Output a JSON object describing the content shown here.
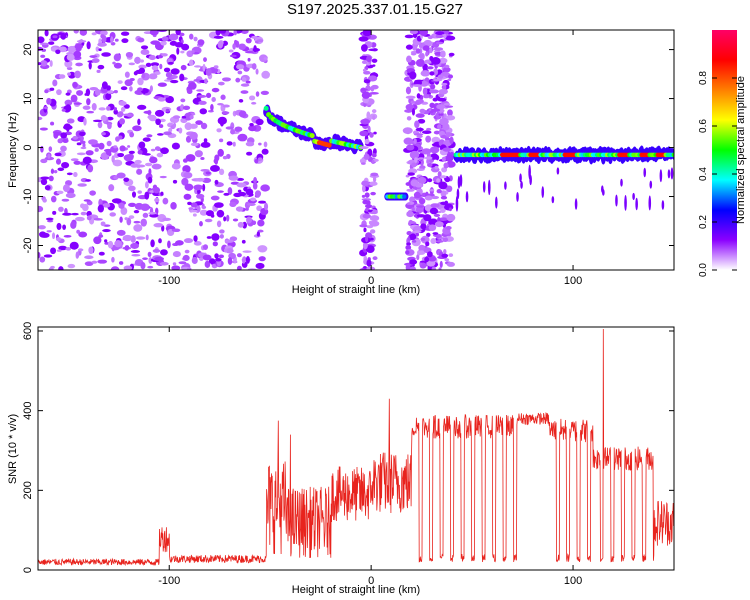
{
  "title": "S197.2025.337.01.15.G27",
  "chart_data": [
    {
      "type": "heatmap",
      "xlabel": "Height of straight line (km)",
      "ylabel": "Frequency (Hz)",
      "xlim": [
        -165,
        150
      ],
      "ylim": [
        -25,
        24
      ],
      "xticks": [
        -100,
        0,
        100
      ],
      "yticks": [
        -20,
        -10,
        0,
        10,
        20
      ],
      "colorbar": {
        "label": "Normalized spectral amplitude",
        "range": [
          0,
          1
        ],
        "ticks": [
          "0.0",
          "0.2",
          "0.4",
          "0.6",
          "0.8"
        ],
        "colors": [
          "#ffffff",
          "#8b00ff",
          "#0000ff",
          "#00ffff",
          "#00ff00",
          "#ffff00",
          "#ff7f00",
          "#ff0000",
          "#ff0066"
        ]
      },
      "regions": [
        {
          "name": "noise-scatter",
          "x": [
            -165,
            -52
          ],
          "freq": [
            -25,
            24
          ],
          "amplitude": 0.1
        },
        {
          "name": "rising-track",
          "x": [
            -52,
            -5
          ],
          "freq_start": 8,
          "freq_end": 0,
          "amplitude": 0.7
        },
        {
          "name": "vertical-burst-1",
          "x": [
            -4,
            2
          ],
          "freq": [
            -25,
            24
          ],
          "amplitude": 0.15
        },
        {
          "name": "low-segment",
          "x": [
            8,
            17
          ],
          "freq": -10,
          "amplitude": 0.5
        },
        {
          "name": "vertical-burst-2",
          "x": [
            18,
            40
          ],
          "freq": [
            -25,
            24
          ],
          "amplitude": 0.1
        },
        {
          "name": "main-track",
          "x": [
            42,
            150
          ],
          "freq": -1.5,
          "amplitude": 0.85
        }
      ]
    },
    {
      "type": "line",
      "xlabel": "Height of straight line (km)",
      "ylabel": "SNR (10 * v/v)",
      "xlim": [
        -165,
        150
      ],
      "ylim": [
        0,
        610
      ],
      "xticks": [
        -100,
        0,
        100
      ],
      "yticks": [
        0,
        200,
        400,
        600
      ],
      "color": "#e8231d",
      "segments": [
        {
          "x": [
            -165,
            -105
          ],
          "level": 20,
          "noise": 8
        },
        {
          "x": [
            -105,
            -100
          ],
          "level": 80,
          "noise": 35
        },
        {
          "x": [
            -100,
            -52
          ],
          "level": 28,
          "noise": 10
        },
        {
          "x": [
            -52,
            -42
          ],
          "level": 160,
          "noise": 120
        },
        {
          "x": [
            -42,
            -20
          ],
          "level": 120,
          "noise": 90
        },
        {
          "x": [
            -20,
            0
          ],
          "level": 190,
          "noise": 70
        },
        {
          "x": [
            0,
            20
          ],
          "level": 220,
          "noise": 80
        },
        {
          "x": [
            20,
            72
          ],
          "level": 360,
          "noise": 30,
          "dropouts_to": 20
        },
        {
          "x": [
            72,
            88
          ],
          "level": 380,
          "noise": 15
        },
        {
          "x": [
            88,
            110
          ],
          "level": 350,
          "noise": 30,
          "dropouts_to": 20
        },
        {
          "x": [
            110,
            140
          ],
          "level": 280,
          "noise": 30,
          "dropouts_to": 20
        },
        {
          "x": [
            140,
            150
          ],
          "level": 120,
          "noise": 60
        }
      ],
      "spikes": [
        {
          "x": -46,
          "y": 375
        },
        {
          "x": -40,
          "y": 340
        },
        {
          "x": 9,
          "y": 430
        },
        {
          "x": 115,
          "y": 605
        }
      ]
    }
  ]
}
